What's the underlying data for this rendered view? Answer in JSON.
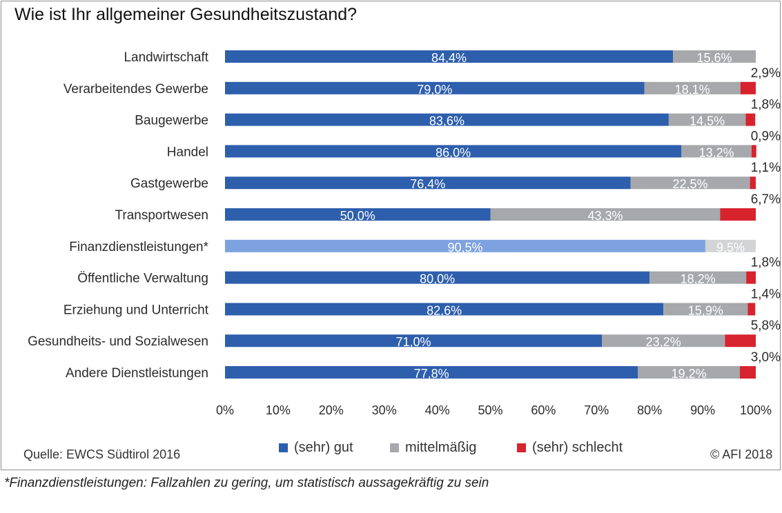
{
  "chart_data": {
    "type": "bar",
    "orientation": "horizontal",
    "stacked": true,
    "title": "Wie ist Ihr allgemeiner Gesundheitszustand?",
    "categories": [
      "Landwirtschaft",
      "Verarbeitendes Gewerbe",
      "Baugewerbe",
      "Handel",
      "Gastgewerbe",
      "Transportwesen",
      "Finanzdienstleistungen*",
      "Öffentliche Verwaltung",
      "Erziehung und Unterricht",
      "Gesundheits- und Sozialwesen",
      "Andere Dienstleistungen"
    ],
    "series": [
      {
        "name": "(sehr) gut",
        "values": [
          84.4,
          79.0,
          83.6,
          86.0,
          76.4,
          50.0,
          90.5,
          80.0,
          82.6,
          71.0,
          77.8
        ],
        "labels": [
          "84,4%",
          "79,0%",
          "83,6%",
          "86,0%",
          "76,4%",
          "50,0%",
          "90,5%",
          "80,0%",
          "82,6%",
          "71,0%",
          "77,8%"
        ],
        "color": "#2e5fad"
      },
      {
        "name": "mittelmäßig",
        "values": [
          15.6,
          18.1,
          14.5,
          13.2,
          22.5,
          43.3,
          9.5,
          18.2,
          15.9,
          23.2,
          19.2
        ],
        "labels": [
          "15,6%",
          "18,1%",
          "14,5%",
          "13,2%",
          "22,5%",
          "43,3%",
          "9,5%",
          "18,2%",
          "15,9%",
          "23,2%",
          "19,2%"
        ],
        "color": "#a6a8ab"
      },
      {
        "name": "(sehr) schlecht",
        "values": [
          0,
          2.9,
          1.8,
          0.9,
          1.1,
          6.7,
          0,
          1.8,
          1.4,
          5.8,
          3.0
        ],
        "labels": [
          "",
          "2,9%",
          "1,8%",
          "0,9%",
          "1,1%",
          "6,7%",
          "",
          "1,8%",
          "1,4%",
          "5,8%",
          "3,0%"
        ],
        "color": "#d7232d"
      }
    ],
    "highlight": {
      "category": "Finanzdienstleistungen*",
      "colors": [
        "#7da2df",
        "#d3d4d6"
      ]
    },
    "xlim": [
      0,
      100
    ],
    "xticks": [
      "0%",
      "10%",
      "20%",
      "30%",
      "40%",
      "50%",
      "60%",
      "70%",
      "80%",
      "90%",
      "100%"
    ],
    "grid": false,
    "legend_position": "bottom"
  },
  "source": "Quelle: EWCS Südtirol 2016",
  "copyright": "© AFI 2018",
  "footnote": "*Finanzdienstleistungen: Fallzahlen zu gering, um statistisch aussagekräftig zu sein"
}
